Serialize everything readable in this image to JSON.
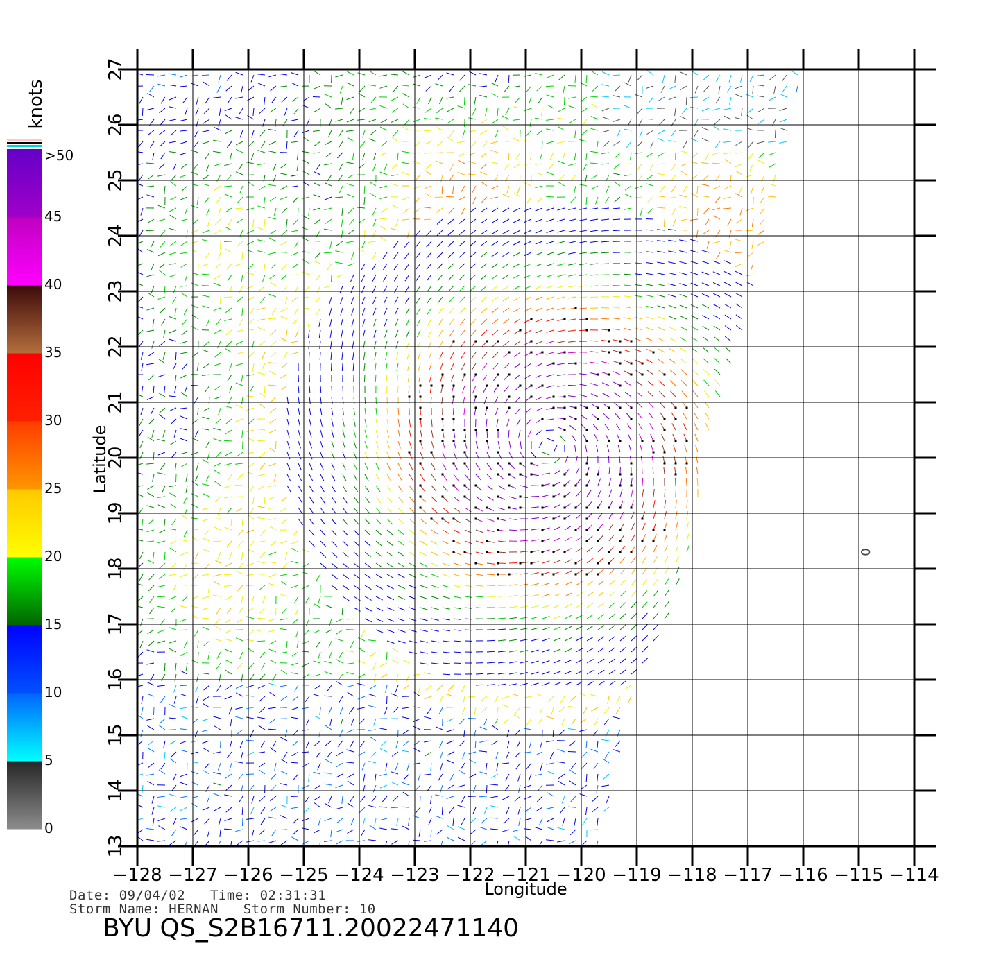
{
  "chart_data": {
    "type": "vector-field",
    "xlabel": "Longitude",
    "ylabel": "Latitude",
    "xlim": [
      -128,
      -114
    ],
    "ylim": [
      13,
      27
    ],
    "x_ticks": [
      "-128",
      "-127",
      "-126",
      "-125",
      "-124",
      "-123",
      "-122",
      "-121",
      "-120",
      "-119",
      "-118",
      "-117",
      "-116",
      "-115",
      "-114"
    ],
    "y_ticks": [
      "13",
      "14",
      "15",
      "16",
      "17",
      "18",
      "19",
      "20",
      "21",
      "22",
      "23",
      "24",
      "25",
      "26",
      "27"
    ],
    "storm_center": {
      "lon": -120.6,
      "lat": 20.2
    },
    "swath_edge": [
      [
        -116.0,
        27.0
      ],
      [
        -116.5,
        24.5
      ],
      [
        -117.0,
        22.5
      ],
      [
        -117.8,
        20.0
      ],
      [
        -118.0,
        18.5
      ],
      [
        -118.5,
        17.0
      ],
      [
        -119.0,
        16.0
      ],
      [
        -119.2,
        15.0
      ],
      [
        -119.6,
        13.0
      ]
    ],
    "data_label": {
      "text": "0",
      "lon": -114.8,
      "lat": 18.3
    },
    "colorbar": {
      "title": "knots",
      "ticks": [
        "0",
        "5",
        "10",
        "15",
        "20",
        "25",
        "30",
        "35",
        "40",
        "45",
        ">50"
      ],
      "colors": {
        "0-5": [
          "#8c8c8c",
          "#262626"
        ],
        "5-10": [
          "#00ffff",
          "#0064ff"
        ],
        "10-15": [
          "#0050ff",
          "#0000ff"
        ],
        "15-20": [
          "#006400",
          "#00ff00"
        ],
        "20-25": [
          "#ffff00",
          "#ffc800"
        ],
        "25-30": [
          "#ff9600",
          "#ff3c00"
        ],
        "30-35": [
          "#ff2000",
          "#ff0000"
        ],
        "35-40": [
          "#b46e3c",
          "#3c0a0a"
        ],
        "40-45": [
          "#ff00ff",
          "#c000c0"
        ],
        "45-50": [
          "#a000c8",
          "#6400c8"
        ]
      }
    }
  },
  "footer": {
    "line1": "Date: 09/04/02   Time: 02:31:31",
    "line2": "Storm Name: HERNAN   Storm Number: 10",
    "title": "BYU QS_S2B16711.20022471140"
  }
}
